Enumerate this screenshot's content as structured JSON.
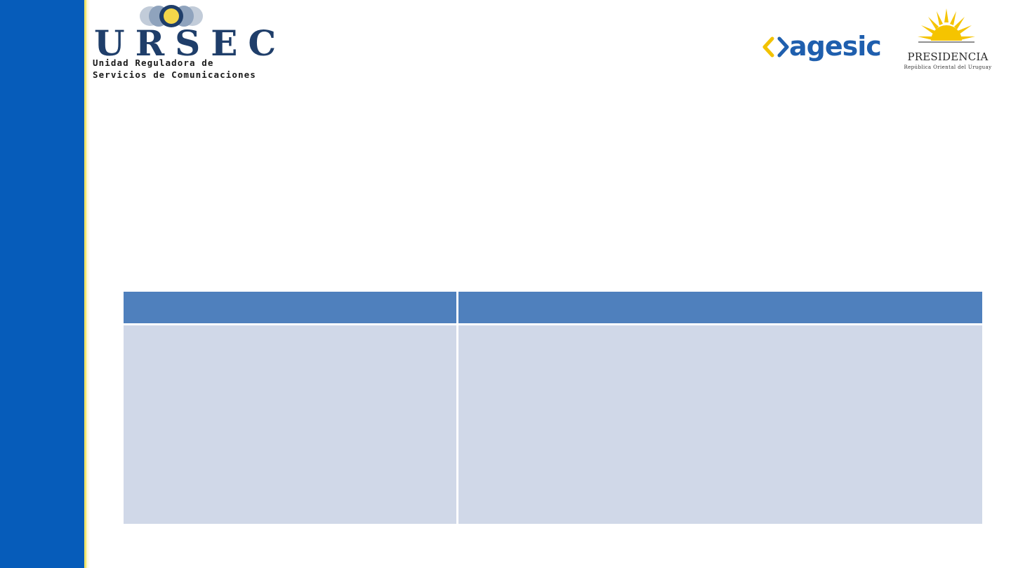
{
  "logos": {
    "ursec": {
      "wordmark": "URSEC",
      "line1": "Unidad Reguladora de",
      "line2": "Servicios de Comunicaciones"
    },
    "agesic": {
      "wordmark": "agesic"
    },
    "presidencia": {
      "wordmark": "PRESIDENCIA",
      "subtitle": "República Oriental del Uruguay"
    }
  },
  "table": {
    "header": [
      "",
      ""
    ],
    "rows": [
      [
        "",
        ""
      ]
    ]
  },
  "colors": {
    "sidebar": "#065cba",
    "sidebar_rule": "#f2e56b",
    "table_header": "#4f80bd",
    "table_body": "#d0d8e8",
    "ursec_navy": "#1f3e6a",
    "agesic_blue": "#1f5fae",
    "agesic_yellow": "#f2c200",
    "presidencia_sun": "#f5c400"
  },
  "icons": {
    "ursec_mark": "ursec-circles-icon",
    "agesic_mark": "angle-brackets-icon",
    "presidencia_mark": "sun-icon"
  }
}
